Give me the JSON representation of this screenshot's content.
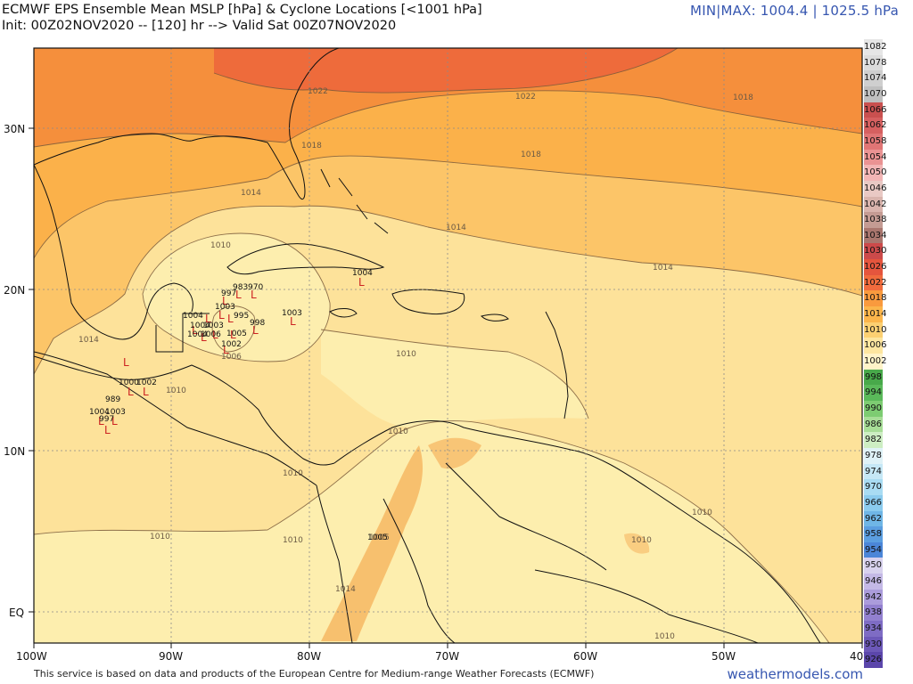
{
  "title": {
    "line1": "ECMWF EPS Ensemble Mean MSLP [hPa] & Cyclone Locations [<1001 hPa]",
    "line2": "Init: 00Z02NOV2020 -- [120] hr --> Valid Sat 00Z07NOV2020"
  },
  "minmax": "MIN|MAX: 1004.4 | 1025.5 hPa",
  "footer": "This service is based on data and products of the European Centre for Medium-range Weather Forecasts (ECMWF)",
  "brand": "weathermodels.com",
  "axes": {
    "lon_labels": [
      "100W",
      "90W",
      "80W",
      "70W",
      "60W",
      "50W",
      "40W"
    ],
    "lat_labels": [
      "30N",
      "20N",
      "10N",
      "EQ"
    ]
  },
  "isobar_labels": [
    "1022",
    "1022",
    "1018",
    "1018",
    "1018",
    "1014",
    "1014",
    "1014",
    "1014",
    "1010",
    "1010",
    "1010",
    "1010",
    "1010",
    "1010",
    "1010",
    "1010",
    "1010",
    "1010",
    "1006",
    "1005",
    "1014"
  ],
  "cyclone_labels": [
    "1004",
    "983",
    "970",
    "997",
    "1003",
    "1004",
    "998",
    "1003",
    "995",
    "1005",
    "1002",
    "1004",
    "1004",
    "1003",
    "1006",
    "1000",
    "1002",
    "989",
    "1004",
    "1003",
    "997",
    "1005"
  ],
  "colorbar": {
    "labels": [
      "1082",
      "1078",
      "1074",
      "1070",
      "1066",
      "1062",
      "1058",
      "1054",
      "1050",
      "1046",
      "1042",
      "1038",
      "1034",
      "1030",
      "1026",
      "1022",
      "1018",
      "1014",
      "1010",
      "1006",
      "1002",
      "998",
      "994",
      "990",
      "986",
      "982",
      "978",
      "974",
      "970",
      "966",
      "962",
      "958",
      "954",
      "950",
      "946",
      "942",
      "938",
      "934",
      "930",
      "926"
    ],
    "colors": [
      "#e6e6e6",
      "#dcdcdc",
      "#cfcfcf",
      "#bfbfbf",
      "#c9504f",
      "#d66060",
      "#e07575",
      "#ea9393",
      "#f2b5b5",
      "#e9c9c4",
      "#d9b4ad",
      "#c49b93",
      "#a9766e",
      "#cc4a4a",
      "#e5553d",
      "#f06b3d",
      "#f99a3e",
      "#fbb54b",
      "#fcd072",
      "#fde6a0",
      "#fff3c8",
      "#48a94a",
      "#5ab95a",
      "#7dcc72",
      "#a7dd97",
      "#cdeec3",
      "#dff2f7",
      "#c6e8f6",
      "#a9dcf3",
      "#8bcbee",
      "#6fb6e6",
      "#5b9ee0",
      "#4b86d8",
      "#d8d2ee",
      "#c4b9e6",
      "#ab9cdb",
      "#9280cf",
      "#7e6cc4",
      "#6c58b8",
      "#5b46ab"
    ]
  },
  "colors": {
    "ocean_1006": "#fdeeae",
    "band_1010": "#fde29a",
    "band_1014": "#fcc568",
    "band_1018": "#fbb14a",
    "band_1022": "#f58f3c",
    "band_1026": "#ee6b3b",
    "cyclone": "#cc2222"
  }
}
